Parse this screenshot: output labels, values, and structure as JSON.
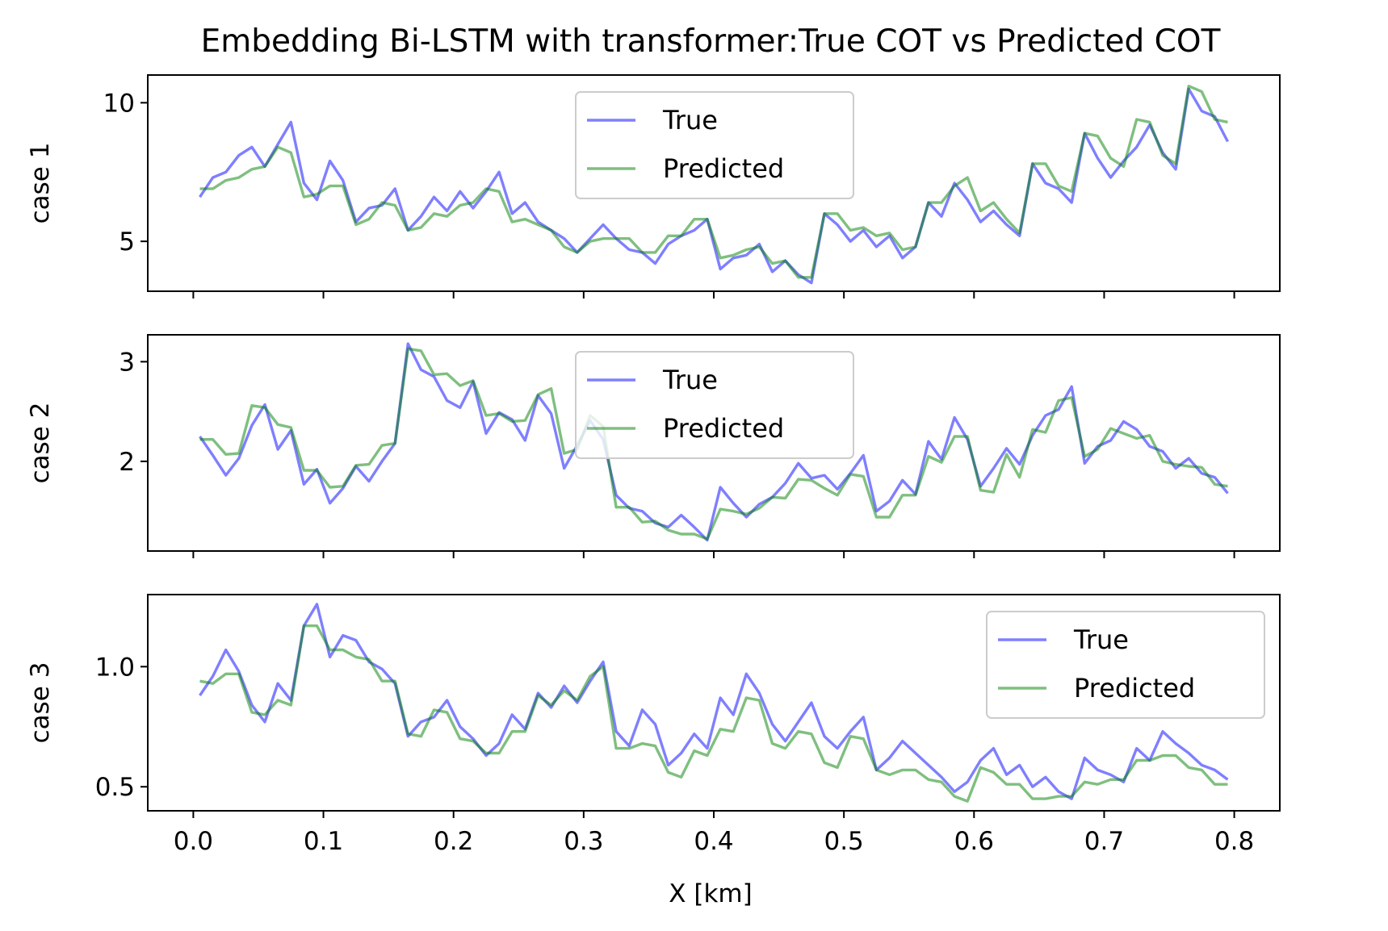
{
  "chart_data": {
    "type": "line",
    "title": "Embedding Bi-LSTM with transformer:True COT vs Predicted COT",
    "xlabel": "X [km]",
    "xlim": [
      -0.035,
      0.835
    ],
    "xticks": [
      0.0,
      0.1,
      0.2,
      0.3,
      0.4,
      0.5,
      0.6,
      0.7,
      0.8
    ],
    "xtick_labels": [
      "0.0",
      "0.1",
      "0.2",
      "0.3",
      "0.4",
      "0.5",
      "0.6",
      "0.7",
      "0.8"
    ],
    "x": [
      0.005,
      0.015,
      0.025,
      0.035,
      0.045,
      0.055,
      0.065,
      0.075,
      0.085,
      0.095,
      0.105,
      0.115,
      0.125,
      0.135,
      0.145,
      0.155,
      0.165,
      0.175,
      0.185,
      0.195,
      0.205,
      0.215,
      0.225,
      0.235,
      0.245,
      0.255,
      0.265,
      0.275,
      0.285,
      0.295,
      0.305,
      0.315,
      0.325,
      0.335,
      0.345,
      0.355,
      0.365,
      0.375,
      0.385,
      0.395,
      0.405,
      0.415,
      0.425,
      0.435,
      0.445,
      0.455,
      0.465,
      0.475,
      0.485,
      0.495,
      0.505,
      0.515,
      0.525,
      0.535,
      0.545,
      0.555,
      0.565,
      0.575,
      0.585,
      0.595,
      0.605,
      0.615,
      0.625,
      0.635,
      0.645,
      0.655,
      0.665,
      0.675,
      0.685,
      0.695,
      0.705,
      0.715,
      0.725,
      0.735,
      0.745,
      0.755,
      0.765,
      0.775,
      0.785,
      0.795
    ],
    "line_colors": {
      "True": "#0000ff",
      "Predicted": "#008000"
    },
    "line_alpha": 0.5,
    "grid": false,
    "subplots": [
      {
        "ylabel": "case 1",
        "ylim": [
          3.2,
          11.0
        ],
        "yticks": [
          5,
          10
        ],
        "ytick_labels": [
          "5",
          "10"
        ],
        "legend_position": "upper center",
        "series": [
          {
            "name": "True",
            "values": [
              6.6,
              7.3,
              7.5,
              8.1,
              8.4,
              7.7,
              8.5,
              9.3,
              7.1,
              6.5,
              7.9,
              7.2,
              5.7,
              6.2,
              6.3,
              6.9,
              5.4,
              5.9,
              6.6,
              6.1,
              6.8,
              6.2,
              6.8,
              7.5,
              6.0,
              6.4,
              5.7,
              5.4,
              5.1,
              4.6,
              5.1,
              5.6,
              5.1,
              4.7,
              4.6,
              4.2,
              4.9,
              5.2,
              5.4,
              5.8,
              4.0,
              4.4,
              4.5,
              4.9,
              3.9,
              4.3,
              3.8,
              3.5,
              6.0,
              5.6,
              5.0,
              5.4,
              4.8,
              5.2,
              4.4,
              4.8,
              6.4,
              5.9,
              7.1,
              6.5,
              5.7,
              6.1,
              5.6,
              5.2,
              7.8,
              7.1,
              6.9,
              6.4,
              8.9,
              8.0,
              7.3,
              7.9,
              8.4,
              9.2,
              8.2,
              7.6,
              10.5,
              9.7,
              9.5,
              8.6
            ]
          },
          {
            "name": "Predicted",
            "values": [
              6.9,
              6.9,
              7.2,
              7.3,
              7.6,
              7.7,
              8.4,
              8.2,
              6.6,
              6.7,
              7.0,
              7.0,
              5.6,
              5.8,
              6.4,
              6.3,
              5.4,
              5.5,
              6.0,
              5.9,
              6.3,
              6.4,
              6.9,
              6.8,
              5.7,
              5.8,
              5.6,
              5.4,
              4.8,
              4.6,
              5.0,
              5.1,
              5.1,
              5.1,
              4.6,
              4.6,
              5.2,
              5.2,
              5.8,
              5.8,
              4.4,
              4.5,
              4.7,
              4.8,
              4.2,
              4.3,
              3.7,
              3.7,
              6.0,
              6.0,
              5.4,
              5.5,
              5.2,
              5.3,
              4.7,
              4.8,
              6.4,
              6.4,
              7.0,
              7.3,
              6.1,
              6.4,
              5.8,
              5.3,
              7.8,
              7.8,
              7.0,
              6.8,
              8.9,
              8.8,
              8.0,
              7.7,
              9.4,
              9.3,
              8.1,
              7.8,
              10.6,
              10.4,
              9.4,
              9.3
            ]
          }
        ]
      },
      {
        "ylabel": "case 2",
        "ylim": [
          1.1,
          3.27
        ],
        "yticks": [
          2,
          3
        ],
        "ytick_labels": [
          "2",
          "3"
        ],
        "legend_position": "upper center",
        "series": [
          {
            "name": "True",
            "values": [
              2.25,
              2.06,
              1.86,
              2.03,
              2.36,
              2.57,
              2.12,
              2.31,
              1.77,
              1.92,
              1.58,
              1.73,
              1.95,
              1.8,
              2.0,
              2.18,
              3.18,
              2.92,
              2.85,
              2.61,
              2.54,
              2.8,
              2.28,
              2.49,
              2.42,
              2.21,
              2.66,
              2.48,
              1.93,
              2.16,
              2.41,
              2.22,
              1.66,
              1.53,
              1.5,
              1.38,
              1.34,
              1.46,
              1.34,
              1.21,
              1.74,
              1.58,
              1.44,
              1.57,
              1.64,
              1.78,
              1.98,
              1.83,
              1.86,
              1.72,
              1.88,
              2.06,
              1.5,
              1.6,
              1.81,
              1.67,
              2.2,
              2.02,
              2.44,
              2.22,
              1.75,
              1.93,
              2.13,
              1.97,
              2.26,
              2.46,
              2.52,
              2.75,
              1.98,
              2.15,
              2.21,
              2.4,
              2.32,
              2.15,
              2.1,
              1.93,
              2.03,
              1.88,
              1.84,
              1.68
            ]
          },
          {
            "name": "Predicted",
            "values": [
              2.22,
              2.22,
              2.07,
              2.08,
              2.56,
              2.54,
              2.37,
              2.34,
              1.91,
              1.91,
              1.74,
              1.75,
              1.96,
              1.97,
              2.16,
              2.18,
              3.13,
              3.11,
              2.87,
              2.88,
              2.76,
              2.81,
              2.46,
              2.48,
              2.4,
              2.41,
              2.67,
              2.73,
              2.08,
              2.12,
              2.46,
              2.35,
              1.54,
              1.54,
              1.39,
              1.4,
              1.31,
              1.27,
              1.27,
              1.22,
              1.52,
              1.5,
              1.47,
              1.53,
              1.64,
              1.63,
              1.82,
              1.81,
              1.73,
              1.66,
              1.87,
              1.85,
              1.44,
              1.44,
              1.66,
              1.66,
              2.05,
              1.99,
              2.25,
              2.25,
              1.71,
              1.69,
              2.07,
              1.84,
              2.32,
              2.29,
              2.61,
              2.64,
              2.05,
              2.12,
              2.33,
              2.28,
              2.23,
              2.26,
              2.0,
              1.97,
              1.95,
              1.94,
              1.77,
              1.75
            ]
          }
        ]
      },
      {
        "ylabel": "case 3",
        "ylim": [
          0.4,
          1.3
        ],
        "yticks": [
          0.5,
          1.0
        ],
        "ytick_labels": [
          "0.5",
          "1.0"
        ],
        "legend_position": "upper right",
        "series": [
          {
            "name": "True",
            "values": [
              0.88,
              0.96,
              1.07,
              0.98,
              0.84,
              0.77,
              0.93,
              0.86,
              1.17,
              1.26,
              1.04,
              1.13,
              1.11,
              1.02,
              0.99,
              0.93,
              0.71,
              0.77,
              0.79,
              0.86,
              0.75,
              0.7,
              0.63,
              0.68,
              0.8,
              0.74,
              0.89,
              0.83,
              0.92,
              0.85,
              0.94,
              1.02,
              0.73,
              0.67,
              0.82,
              0.76,
              0.59,
              0.64,
              0.72,
              0.66,
              0.87,
              0.8,
              0.97,
              0.89,
              0.76,
              0.69,
              0.77,
              0.85,
              0.71,
              0.66,
              0.73,
              0.79,
              0.57,
              0.62,
              0.69,
              0.64,
              0.59,
              0.54,
              0.48,
              0.52,
              0.61,
              0.66,
              0.55,
              0.59,
              0.5,
              0.54,
              0.48,
              0.45,
              0.62,
              0.57,
              0.55,
              0.52,
              0.66,
              0.61,
              0.73,
              0.68,
              0.64,
              0.59,
              0.57,
              0.53
            ]
          },
          {
            "name": "Predicted",
            "values": [
              0.94,
              0.93,
              0.97,
              0.97,
              0.81,
              0.8,
              0.86,
              0.84,
              1.17,
              1.17,
              1.07,
              1.07,
              1.04,
              1.03,
              0.94,
              0.94,
              0.72,
              0.71,
              0.82,
              0.81,
              0.7,
              0.69,
              0.64,
              0.64,
              0.73,
              0.73,
              0.88,
              0.84,
              0.9,
              0.86,
              0.96,
              1.0,
              0.66,
              0.66,
              0.68,
              0.67,
              0.56,
              0.54,
              0.65,
              0.63,
              0.74,
              0.73,
              0.87,
              0.86,
              0.68,
              0.66,
              0.73,
              0.72,
              0.6,
              0.58,
              0.71,
              0.7,
              0.57,
              0.55,
              0.57,
              0.57,
              0.53,
              0.52,
              0.46,
              0.44,
              0.58,
              0.56,
              0.51,
              0.51,
              0.45,
              0.45,
              0.46,
              0.46,
              0.52,
              0.51,
              0.53,
              0.53,
              0.61,
              0.61,
              0.63,
              0.63,
              0.58,
              0.57,
              0.51,
              0.51
            ]
          }
        ]
      }
    ]
  }
}
